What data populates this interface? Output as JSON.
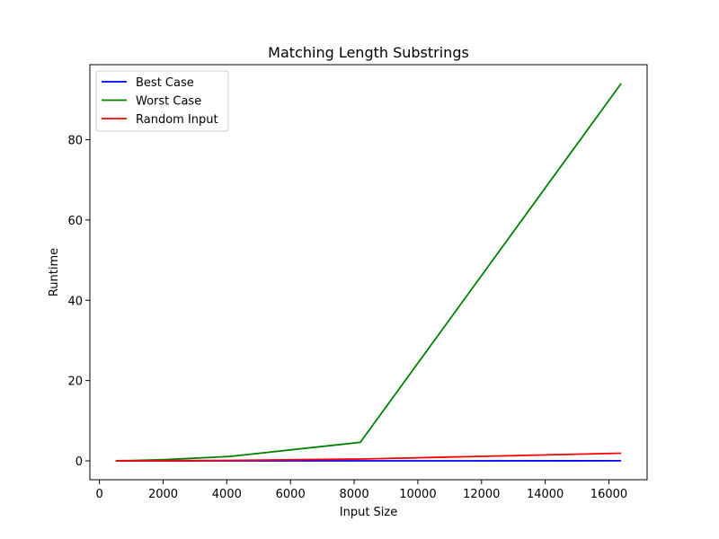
{
  "chart_data": {
    "type": "line",
    "title": "Matching Length Substrings",
    "xlabel": "Input Size",
    "ylabel": "Runtime",
    "xlim": [
      -300,
      17200
    ],
    "ylim": [
      -4.7,
      98.7
    ],
    "xticks": [
      0,
      2000,
      4000,
      6000,
      8000,
      10000,
      12000,
      14000,
      16000
    ],
    "yticks": [
      0,
      20,
      40,
      60,
      80
    ],
    "legend_position": "upper left",
    "grid": false,
    "x": [
      512,
      1024,
      2048,
      4096,
      8192,
      16384
    ],
    "series": [
      {
        "name": "Best Case",
        "color": "#0000ff",
        "values": [
          0.0,
          0.0,
          0.0,
          0.01,
          0.01,
          0.02
        ]
      },
      {
        "name": "Worst Case",
        "color": "#008000",
        "values": [
          0.02,
          0.07,
          0.3,
          1.1,
          4.6,
          94.0
        ]
      },
      {
        "name": "Random Input",
        "color": "#ff0000",
        "values": [
          0.01,
          0.02,
          0.05,
          0.12,
          0.45,
          1.9
        ]
      }
    ]
  }
}
